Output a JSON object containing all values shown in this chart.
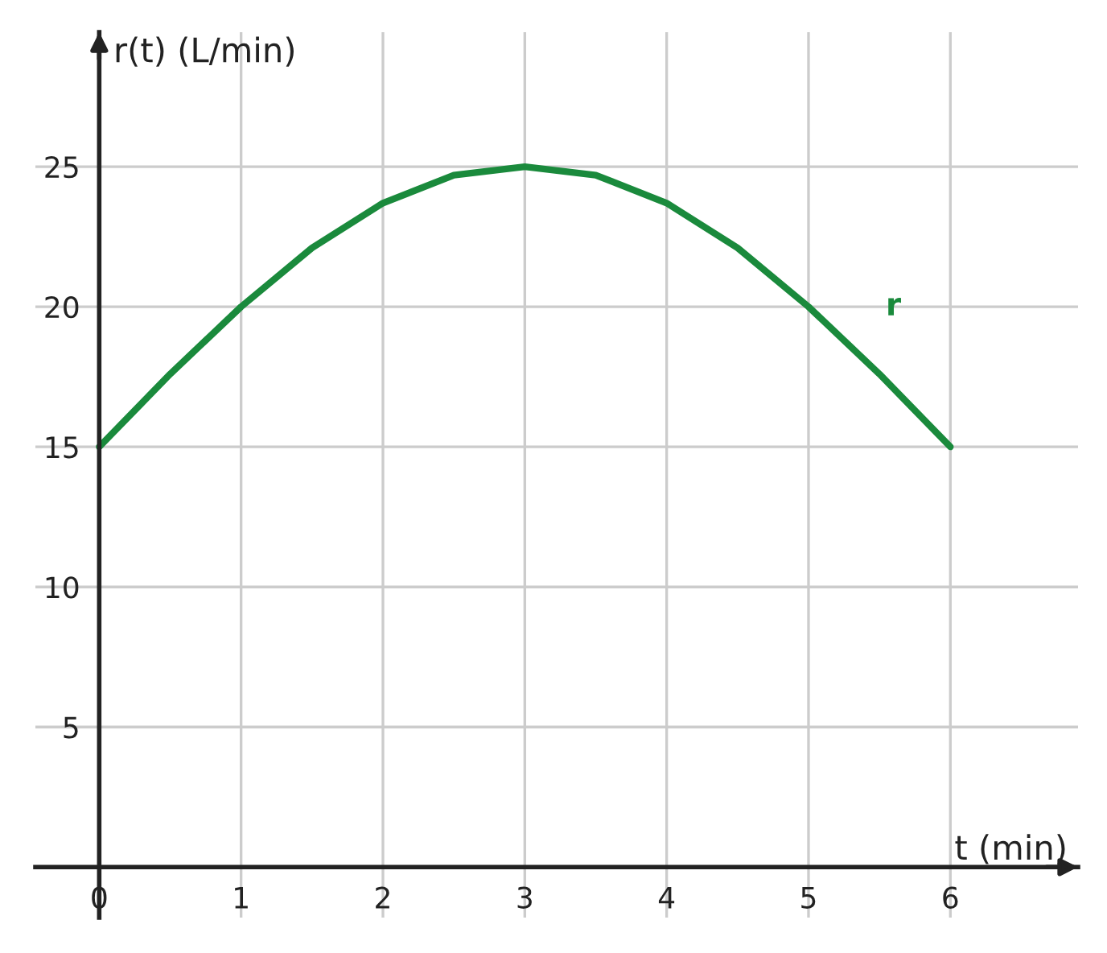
{
  "chart_data": {
    "type": "line",
    "xlabel": "t (min)",
    "ylabel": "r(t) (L/min)",
    "series": [
      {
        "name": "r",
        "color": "#1a8a3c",
        "x": [
          0,
          0.5,
          1,
          1.5,
          2,
          2.5,
          3,
          3.5,
          4,
          4.5,
          5,
          5.5,
          6
        ],
        "values": [
          15,
          17.6,
          20,
          22.1,
          23.7,
          24.7,
          25,
          24.7,
          23.7,
          22.1,
          20,
          17.6,
          15
        ]
      }
    ],
    "xlim": [
      -0.45,
      6.9
    ],
    "ylim": [
      -1.8,
      29.8
    ],
    "xticks": [
      0,
      1,
      2,
      3,
      4,
      5,
      6
    ],
    "yticks": [
      5,
      10,
      15,
      20,
      25
    ],
    "grid": true,
    "legend": false,
    "line_style": "solid",
    "marker": "none"
  }
}
